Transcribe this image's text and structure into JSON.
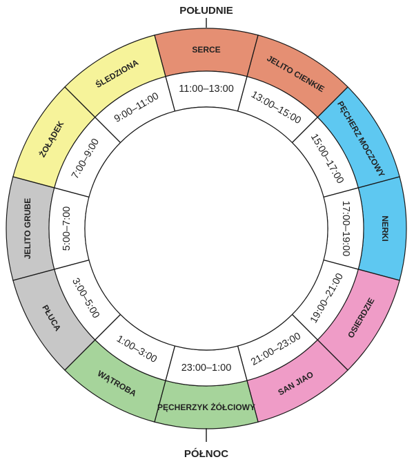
{
  "directions": {
    "top": "POŁUDNIE",
    "bottom": "PÓŁNOC"
  },
  "segments": [
    {
      "organ": "SERCE",
      "time": "11:00–13:00",
      "color": "#e58f73"
    },
    {
      "organ": "JELITO CIENKIE",
      "time": "13:00–15:00",
      "color": "#e58f73"
    },
    {
      "organ": "PĘCHERZ MOCZOWY",
      "time": "15:00–17:00",
      "color": "#5ec8f1"
    },
    {
      "organ": "NERKI",
      "time": "17:00–19:00",
      "color": "#5ec8f1"
    },
    {
      "organ": "OSIERDZIE",
      "time": "19:00–21:00",
      "color": "#ef9cc7"
    },
    {
      "organ": "SAN JIAO",
      "time": "21:00–23:00",
      "color": "#ef9cc7"
    },
    {
      "organ": "PĘCHERZYK ŻÓŁCIOWY",
      "time": "23:00–1:00",
      "color": "#a6d49b"
    },
    {
      "organ": "WĄTROBA",
      "time": "1:00–3:00",
      "color": "#a6d49b"
    },
    {
      "organ": "PŁUCA",
      "time": "3:00–5:00",
      "color": "#c7c7c7"
    },
    {
      "organ": "JELITO GRUBE",
      "time": "5:00–7:00",
      "color": "#c7c7c7"
    },
    {
      "organ": "ŻOŁĄDEK",
      "time": "7:00–9:00",
      "color": "#f6f39a"
    },
    {
      "organ": "ŚLEDZIONA",
      "time": "9:00–11:00",
      "color": "#f6f39a"
    }
  ]
}
